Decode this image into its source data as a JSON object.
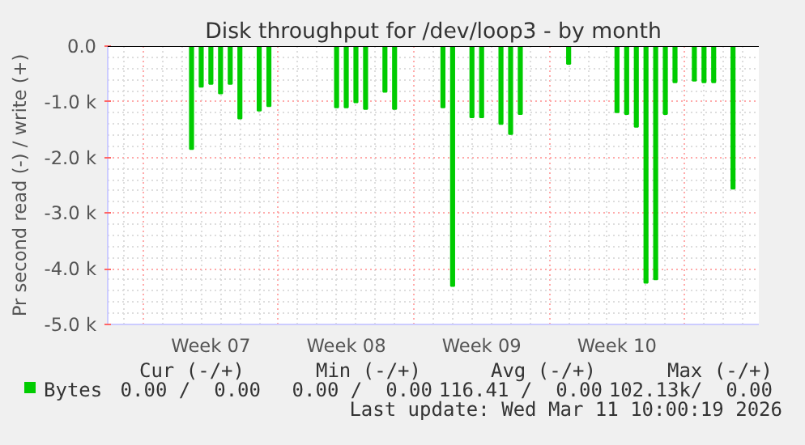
{
  "chart_data": {
    "type": "bar",
    "title": "Disk throughput for /dev/loop3 - by month",
    "ylabel": "Pr second read (-) / write (+)",
    "categories": [
      null,
      null,
      null,
      null,
      null,
      null,
      null,
      null,
      null,
      null,
      "Week 07",
      null,
      null,
      null,
      null,
      null,
      null,
      null,
      null,
      null,
      null,
      null,
      null,
      null,
      "Week 08",
      null,
      null,
      null,
      null,
      null,
      null,
      null,
      null,
      null,
      null,
      null,
      null,
      null,
      "Week 09",
      null,
      null,
      null,
      null,
      null,
      null,
      null,
      null,
      null,
      null,
      null,
      null,
      null,
      "Week 10",
      null,
      null,
      null,
      null,
      null,
      null,
      null,
      null,
      null,
      null,
      null,
      null,
      null,
      null
    ],
    "series": [
      {
        "name": "Bytes",
        "color": "#00cc00",
        "values": [
          0,
          0,
          0,
          0,
          0,
          0,
          0,
          0,
          -1850,
          -730,
          -680,
          -850,
          -680,
          -1300,
          0,
          -1160,
          -1080,
          0,
          0,
          0,
          0,
          0,
          0,
          -1100,
          -1100,
          -1010,
          -1130,
          0,
          -820,
          -1130,
          0,
          0,
          0,
          0,
          -1100,
          -4310,
          0,
          -1280,
          -1280,
          0,
          -1400,
          -1580,
          -1220,
          0,
          0,
          0,
          0,
          -320,
          0,
          0,
          0,
          0,
          -1190,
          -1220,
          -1450,
          -4250,
          -4190,
          -1220,
          -650,
          0,
          -620,
          -650,
          -650,
          0,
          -2560,
          0,
          0
        ]
      }
    ],
    "ylim": [
      -5000,
      0
    ],
    "yticks": [
      {
        "value": -5000,
        "label": "-5.0 k"
      },
      {
        "value": -4000,
        "label": "-4.0 k"
      },
      {
        "value": -3000,
        "label": "-3.0 k"
      },
      {
        "value": -2000,
        "label": "-2.0 k"
      },
      {
        "value": -1000,
        "label": "-1.0 k"
      },
      {
        "value": 0,
        "label": "0.0"
      }
    ],
    "grid": true,
    "legend": "bottom",
    "annotations": [
      "Cur (-/+)",
      "Min (-/+)",
      "Avg (-/+)",
      "Max (-/+)",
      "0.00 /  0.00",
      "0.00 /  0.00",
      "116.41 /  0.00",
      "102.13k/  0.00",
      "Last update: Wed Mar 11 10:00:19 2026"
    ]
  }
}
